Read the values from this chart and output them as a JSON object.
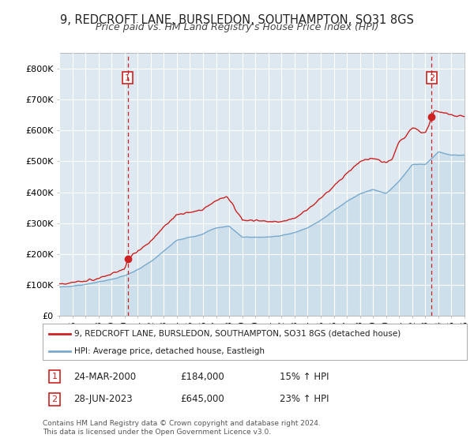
{
  "title": "9, REDCROFT LANE, BURSLEDON, SOUTHAMPTON, SO31 8GS",
  "subtitle": "Price paid vs. HM Land Registry's House Price Index (HPI)",
  "legend_label_red": "9, REDCROFT LANE, BURSLEDON, SOUTHAMPTON, SO31 8GS (detached house)",
  "legend_label_blue": "HPI: Average price, detached house, Eastleigh",
  "annotation1_date": "24-MAR-2000",
  "annotation1_price": "£184,000",
  "annotation1_hpi": "15% ↑ HPI",
  "annotation2_date": "28-JUN-2023",
  "annotation2_price": "£645,000",
  "annotation2_hpi": "23% ↑ HPI",
  "footer": "Contains HM Land Registry data © Crown copyright and database right 2024.\nThis data is licensed under the Open Government Licence v3.0.",
  "background_color": "#ffffff",
  "chart_bg_color": "#dde8f0",
  "grid_color": "#ffffff",
  "red_color": "#cc2222",
  "blue_color": "#7aaacc",
  "blue_fill_color": "#c5daea",
  "title_fontsize": 10.5,
  "subtitle_fontsize": 9,
  "ylim": [
    0,
    850000
  ],
  "yticks": [
    0,
    100000,
    200000,
    300000,
    400000,
    500000,
    600000,
    700000,
    800000
  ],
  "ytick_labels": [
    "£0",
    "£100K",
    "£200K",
    "£300K",
    "£400K",
    "£500K",
    "£600K",
    "£700K",
    "£800K"
  ],
  "xstart": 1995.0,
  "xend": 2026.0,
  "sale1_year": 2000.23,
  "sale1_price": 184000,
  "sale2_year": 2023.49,
  "sale2_price": 645000
}
